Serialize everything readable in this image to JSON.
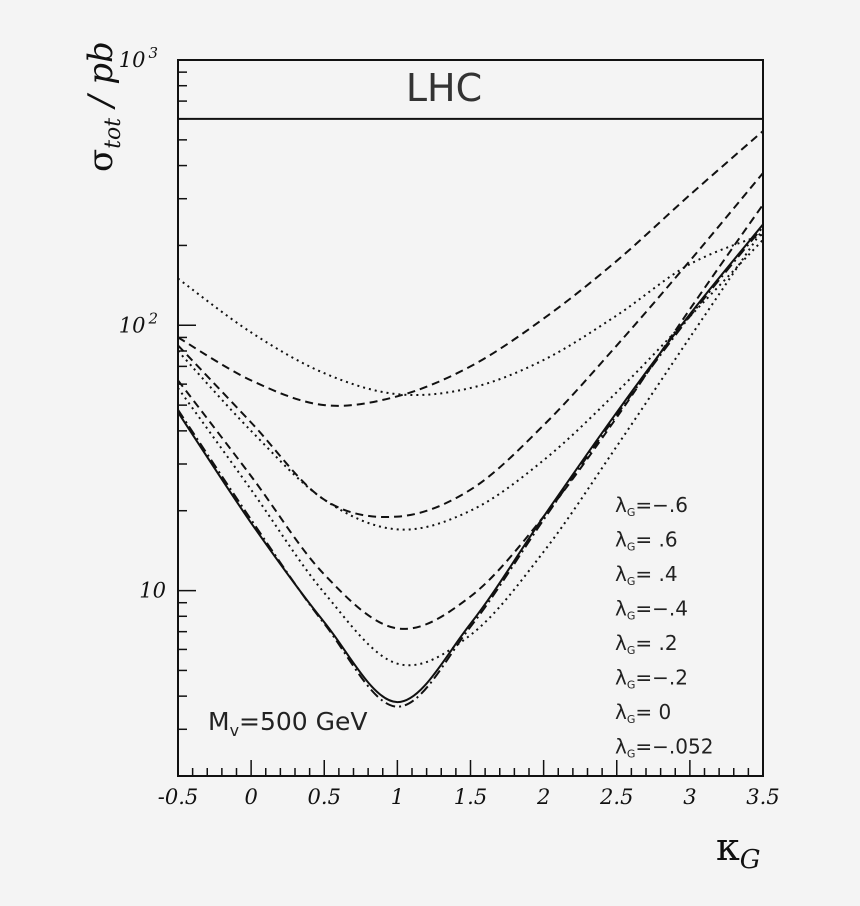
{
  "chart_data": {
    "type": "line",
    "title": "LHC",
    "xlabel": "κG",
    "ylabel": "σtot / pb",
    "xlim": [
      -0.5,
      3.5
    ],
    "ylim": [
      2,
      1000
    ],
    "yscale": "log",
    "annotation": "Mv=500 GeV",
    "x_ticks": [
      {
        "value": -0.5,
        "label": "-0.5"
      },
      {
        "value": 0,
        "label": "0"
      },
      {
        "value": 0.5,
        "label": "0.5"
      },
      {
        "value": 1,
        "label": "1"
      },
      {
        "value": 1.5,
        "label": "1.5"
      },
      {
        "value": 2,
        "label": "2"
      },
      {
        "value": 2.5,
        "label": "2.5"
      },
      {
        "value": 3,
        "label": "3"
      },
      {
        "value": 3.5,
        "label": "3.5"
      }
    ],
    "y_ticks": [
      {
        "value": 10,
        "label": "10"
      },
      {
        "value": 100,
        "label": "10",
        "exp": "2"
      },
      {
        "value": 1000,
        "label": "10",
        "exp": "3"
      }
    ],
    "series": [
      {
        "name": "λG=−.6",
        "style": "dotted",
        "x": [
          -0.5,
          0,
          0.5,
          1,
          1.5,
          2,
          2.5,
          3,
          3.5
        ],
        "values": [
          150,
          94,
          66,
          55,
          58,
          74,
          109,
          170,
          220
        ]
      },
      {
        "name": "λG= .6",
        "style": "dashed",
        "x": [
          -0.5,
          0,
          0.5,
          1,
          1.5,
          2,
          2.5,
          3,
          3.5
        ],
        "values": [
          90,
          62,
          50,
          54,
          70,
          106,
          175,
          310,
          540
        ]
      },
      {
        "name": "λG= .4",
        "style": "dashed",
        "x": [
          -0.5,
          0,
          0.5,
          1,
          1.5,
          2,
          2.5,
          3,
          3.5
        ],
        "values": [
          84,
          43,
          22,
          19,
          24,
          42,
          84,
          175,
          375
        ]
      },
      {
        "name": "λG=−.4",
        "style": "dotted",
        "x": [
          -0.5,
          0,
          0.5,
          1,
          1.5,
          2,
          2.5,
          3,
          3.5
        ],
        "values": [
          80,
          40,
          22,
          17,
          20,
          31,
          56,
          108,
          210
        ]
      },
      {
        "name": "λG= .2",
        "style": "dashed",
        "x": [
          -0.5,
          0,
          0.5,
          1,
          1.5,
          2,
          2.5,
          3,
          3.5
        ],
        "values": [
          62,
          27,
          11.5,
          7.2,
          9.5,
          19,
          45,
          115,
          285
        ]
      },
      {
        "name": "λG=−.2",
        "style": "dotted",
        "x": [
          -0.5,
          0,
          0.5,
          1,
          1.5,
          2,
          2.5,
          3,
          3.5
        ],
        "values": [
          58,
          24,
          9.8,
          5.3,
          6.8,
          14,
          35,
          90,
          230
        ]
      },
      {
        "name": "λG= 0",
        "style": "solid",
        "x": [
          -0.5,
          0,
          0.5,
          1,
          1.5,
          2,
          2.5,
          3,
          3.5
        ],
        "values": [
          47,
          18,
          7.6,
          3.8,
          7.5,
          19,
          47,
          110,
          240
        ]
      },
      {
        "name": "λG=−.052",
        "style": "dashdot",
        "x": [
          -0.5,
          0,
          0.5,
          1,
          1.5,
          2,
          2.5,
          3,
          3.5
        ],
        "values": [
          48,
          18.5,
          7.5,
          3.65,
          7.3,
          18.5,
          46,
          108,
          235
        ]
      }
    ],
    "legend": [
      {
        "base": "λ",
        "sub": "G",
        "rest": "=−.6"
      },
      {
        "base": "λ",
        "sub": "G",
        "rest": "=  .6"
      },
      {
        "base": "λ",
        "sub": "G",
        "rest": "=   .4"
      },
      {
        "base": "λ",
        "sub": "G",
        "rest": "=−.4"
      },
      {
        "base": "λ",
        "sub": "G",
        "rest": "=   .2"
      },
      {
        "base": "λ",
        "sub": "G",
        "rest": "=−.2"
      },
      {
        "base": "λ",
        "sub": "G",
        "rest": "=    0"
      },
      {
        "base": "λ",
        "sub": "G",
        "rest": "=−.052"
      }
    ],
    "legend_position": "bottom-right",
    "colors": {
      "background": "#f4f4f4",
      "ink": "#111111"
    }
  }
}
